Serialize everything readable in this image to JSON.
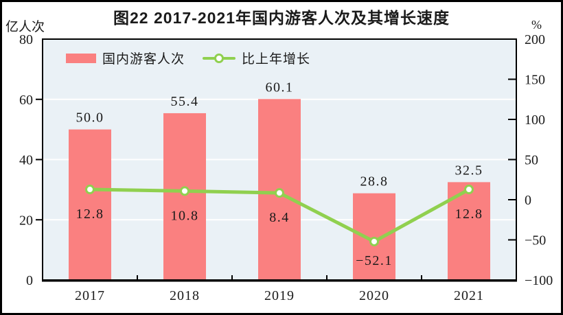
{
  "chart_data": {
    "type": "bar",
    "title": "图22  2017-2021年国内游客人次及其增长速度",
    "unit_left": "亿人次",
    "unit_right": "%",
    "categories": [
      "2017",
      "2018",
      "2019",
      "2020",
      "2021"
    ],
    "series": [
      {
        "name": "国内游客人次",
        "type": "bar",
        "axis": "left",
        "values": [
          50.0,
          55.4,
          60.1,
          28.8,
          32.5
        ],
        "labels": [
          "50.0",
          "55.4",
          "60.1",
          "28.8",
          "32.5"
        ]
      },
      {
        "name": "比上年增长",
        "type": "line",
        "axis": "right",
        "values": [
          12.8,
          10.8,
          8.4,
          -52.1,
          12.8
        ],
        "labels": [
          "12.8",
          "10.8",
          "8.4",
          "-52.1",
          "12.8"
        ]
      }
    ],
    "left_axis": {
      "min": 0,
      "max": 80,
      "ticks": [
        0,
        20,
        40,
        60,
        80
      ]
    },
    "right_axis": {
      "min": -100,
      "max": 200,
      "ticks": [
        -100,
        -50,
        0,
        50,
        100,
        150,
        200
      ]
    },
    "gridlines_at_left_values": [
      20,
      40,
      60
    ],
    "legend_position": "top-left-inside",
    "colors": {
      "bar": "#fa8080",
      "line": "#90d04f",
      "marker_fill": "#ffffff",
      "plot_bg": "#eaf1f6",
      "grid": "#ffffff",
      "axis": "#000000",
      "text": "#1a1a1a"
    }
  }
}
